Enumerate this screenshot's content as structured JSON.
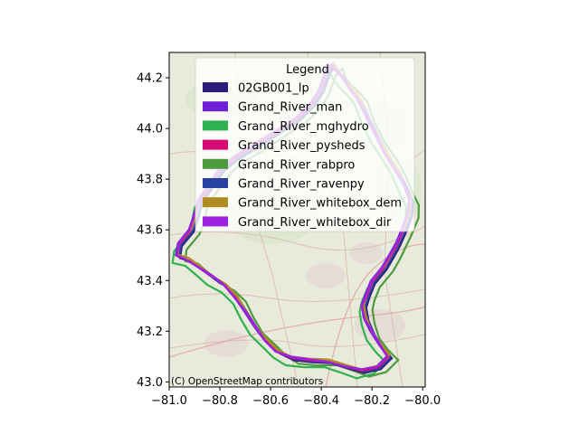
{
  "chart_data": {
    "type": "map",
    "basemap": "OpenStreetMap",
    "attribution": "(C) OpenStreetMap contributors",
    "xlim": [
      -81.0,
      -79.99
    ],
    "ylim": [
      42.98,
      44.3
    ],
    "x_ticks": [
      -81.0,
      -80.8,
      -80.6,
      -80.4,
      -80.2,
      -80.0
    ],
    "x_tick_labels": [
      "−81.0",
      "−80.8",
      "−80.6",
      "−80.4",
      "−80.2",
      "−80.0"
    ],
    "y_ticks": [
      43.0,
      43.2,
      43.4,
      43.6,
      43.8,
      44.0,
      44.2
    ],
    "y_tick_labels": [
      "43.0",
      "43.2",
      "43.4",
      "43.6",
      "43.8",
      "44.0",
      "44.2"
    ],
    "legend": {
      "title": "Legend",
      "placement": "upper-center",
      "entries": [
        {
          "label": "02GB001_lp",
          "color": "#2e1a7a"
        },
        {
          "label": "Grand_River_man",
          "color": "#6f1fd6"
        },
        {
          "label": "Grand_River_mghydro",
          "color": "#2fb14f"
        },
        {
          "label": "Grand_River_pysheds",
          "color": "#d90a73"
        },
        {
          "label": "Grand_River_rabpro",
          "color": "#4e9a3f"
        },
        {
          "label": "Grand_River_ravenpy",
          "color": "#2840a0"
        },
        {
          "label": "Grand_River_whitebox_dem",
          "color": "#b08c20"
        },
        {
          "label": "Grand_River_whitebox_dir",
          "color": "#a020e0"
        }
      ]
    },
    "watershed_outline": [
      [
        -80.38,
        44.23
      ],
      [
        -80.36,
        44.25
      ],
      [
        -80.34,
        44.23
      ],
      [
        -80.31,
        44.2
      ],
      [
        -80.29,
        44.16
      ],
      [
        -80.26,
        44.12
      ],
      [
        -80.22,
        44.05
      ],
      [
        -80.18,
        43.97
      ],
      [
        -80.15,
        43.9
      ],
      [
        -80.11,
        43.84
      ],
      [
        -80.07,
        43.78
      ],
      [
        -80.05,
        43.72
      ],
      [
        -80.06,
        43.66
      ],
      [
        -80.08,
        43.6
      ],
      [
        -80.1,
        43.55
      ],
      [
        -80.13,
        43.5
      ],
      [
        -80.16,
        43.45
      ],
      [
        -80.2,
        43.4
      ],
      [
        -80.22,
        43.35
      ],
      [
        -80.24,
        43.3
      ],
      [
        -80.23,
        43.25
      ],
      [
        -80.2,
        43.2
      ],
      [
        -80.17,
        43.15
      ],
      [
        -80.14,
        43.1
      ],
      [
        -80.18,
        43.06
      ],
      [
        -80.24,
        43.05
      ],
      [
        -80.3,
        43.06
      ],
      [
        -80.38,
        43.08
      ],
      [
        -80.45,
        43.09
      ],
      [
        -80.52,
        43.1
      ],
      [
        -80.58,
        43.12
      ],
      [
        -80.62,
        43.16
      ],
      [
        -80.66,
        43.22
      ],
      [
        -80.7,
        43.28
      ],
      [
        -80.74,
        43.33
      ],
      [
        -80.78,
        43.38
      ],
      [
        -80.83,
        43.42
      ],
      [
        -80.88,
        43.45
      ],
      [
        -80.93,
        43.48
      ],
      [
        -80.97,
        43.5
      ],
      [
        -80.96,
        43.55
      ],
      [
        -80.92,
        43.6
      ],
      [
        -80.9,
        43.66
      ],
      [
        -80.88,
        43.72
      ],
      [
        -80.84,
        43.78
      ],
      [
        -80.8,
        43.84
      ],
      [
        -80.74,
        43.89
      ],
      [
        -80.66,
        43.94
      ],
      [
        -80.58,
        43.99
      ],
      [
        -80.5,
        44.04
      ],
      [
        -80.44,
        44.1
      ],
      [
        -80.4,
        44.16
      ],
      [
        -80.38,
        44.23
      ]
    ]
  }
}
